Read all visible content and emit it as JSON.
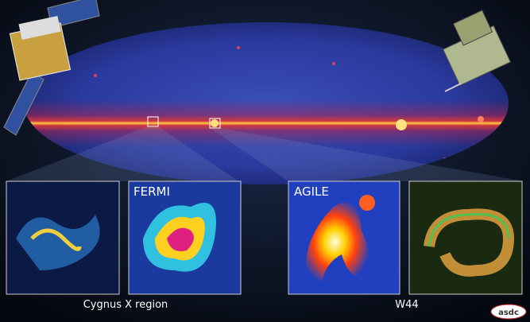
{
  "panels": [
    {
      "label": "FERMI"
    },
    {
      "label": "AGILE"
    }
  ],
  "captions": [
    "Cygnus X region",
    "W44"
  ],
  "logo": "asdc"
}
